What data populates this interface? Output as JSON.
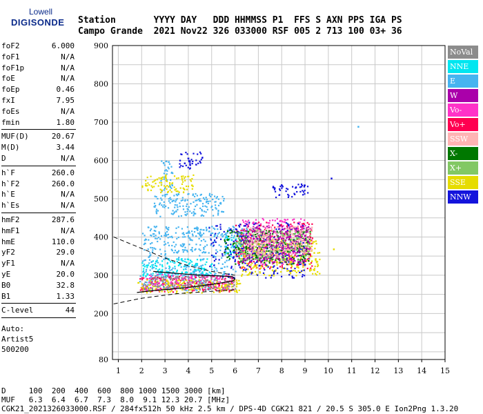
{
  "logo": {
    "line1": "Lowell",
    "line2": "DIGISONDE"
  },
  "header": {
    "line1": "Station       YYYY DAY   DDD HHMMSS P1  FFS S AXN PPS IGA PS",
    "line2": "Campo Grande  2021 Nov22 326 033000 RSF 005 2 713 100 03+ 36"
  },
  "params": [
    {
      "name": "foF2",
      "value": "6.000"
    },
    {
      "name": "foF1",
      "value": "N/A"
    },
    {
      "name": "foF1p",
      "value": "N/A"
    },
    {
      "name": "foE",
      "value": "N/A"
    },
    {
      "name": "foEp",
      "value": "0.46"
    },
    {
      "name": "fxI",
      "value": "7.95"
    },
    {
      "name": "foEs",
      "value": "N/A"
    },
    {
      "name": "fmin",
      "value": "1.80"
    },
    {
      "name": "MUF(D)",
      "value": "20.67"
    },
    {
      "name": "M(D)",
      "value": "3.44"
    },
    {
      "name": "D",
      "value": "N/A"
    },
    {
      "name": "h`F",
      "value": "260.0"
    },
    {
      "name": "h`F2",
      "value": "260.0"
    },
    {
      "name": "h`E",
      "value": "N/A"
    },
    {
      "name": "h`Es",
      "value": "N/A"
    },
    {
      "name": "hmF2",
      "value": "287.6"
    },
    {
      "name": "hmF1",
      "value": "N/A"
    },
    {
      "name": "hmE",
      "value": "110.0"
    },
    {
      "name": "yF2",
      "value": "29.0"
    },
    {
      "name": "yF1",
      "value": "N/A"
    },
    {
      "name": "yE",
      "value": "20.0"
    },
    {
      "name": "B0",
      "value": "32.8"
    },
    {
      "name": "B1",
      "value": "1.33"
    },
    {
      "name": "C-level",
      "value": "44"
    }
  ],
  "auto": {
    "line1": "Auto:",
    "line2": "Artist5",
    "line3": "500200"
  },
  "legend": [
    {
      "label": "NoVal",
      "color": "#8c8c8c"
    },
    {
      "label": "NNE",
      "color": "#00e6f0"
    },
    {
      "label": "E",
      "color": "#46b4f0"
    },
    {
      "label": "W",
      "color": "#aa00aa"
    },
    {
      "label": "Vo-",
      "color": "#ff32c8"
    },
    {
      "label": "Vo+",
      "color": "#ff0050"
    },
    {
      "label": "SSW",
      "color": "#ffb4b4"
    },
    {
      "label": "X-",
      "color": "#007800"
    },
    {
      "label": "X+",
      "color": "#82c864"
    },
    {
      "label": "SSE",
      "color": "#e6dc00"
    },
    {
      "label": "NNW",
      "color": "#1414dc"
    }
  ],
  "footer": {
    "line1": "D     100  200  400  600  800 1000 1500 3000 [km]",
    "line2": "MUF   6.3  6.4  6.7  7.3  8.0  9.1 12.3 20.7 [MHz]",
    "line3": "CGK21_2021326033000.RSF / 284fx512h 50 kHz 2.5 km / DPS-4D CGK21 821 / 20.5 S 305.0 E Ion2Png 1.3.20"
  },
  "chart_data": {
    "type": "scatter",
    "title": "",
    "xlabel": "",
    "ylabel": "",
    "xlim": [
      0.75,
      15
    ],
    "ylim": [
      80,
      900
    ],
    "x_ticks": [
      1,
      2,
      3,
      4,
      5,
      6,
      7,
      8,
      9,
      10,
      11,
      12,
      13,
      14,
      15
    ],
    "y_ticks": [
      80,
      200,
      300,
      400,
      500,
      600,
      700,
      800,
      900
    ],
    "grid": true,
    "legend_position": "right",
    "series": [
      {
        "name": "E",
        "color": "#46b4f0",
        "regions": [
          {
            "x": [
              1.9,
              5.2
            ],
            "y": [
              262,
              312
            ]
          },
          {
            "x": [
              2.0,
              6.0
            ],
            "y": [
              300,
              412
            ]
          },
          {
            "x": [
              2.2,
              6.5
            ],
            "y": [
              400,
              430
            ]
          },
          {
            "x": [
              2.5,
              5.5
            ],
            "y": [
              455,
              515
            ]
          },
          {
            "x": [
              2.8,
              3.3
            ],
            "y": [
              520,
              600
            ]
          }
        ]
      },
      {
        "name": "NNE",
        "color": "#00e6f0",
        "regions": [
          {
            "x": [
              2.0,
              5.0
            ],
            "y": [
              300,
              345
            ]
          },
          {
            "x": [
              5.5,
              6.3
            ],
            "y": [
              350,
              405
            ]
          }
        ]
      },
      {
        "name": "Vo+",
        "color": "#ff0050",
        "regions": [
          {
            "x": [
              1.9,
              6.0
            ],
            "y": [
              258,
              300
            ]
          },
          {
            "x": [
              6.0,
              9.3
            ],
            "y": [
              318,
              440
            ]
          }
        ]
      },
      {
        "name": "Vo-",
        "color": "#ff32c8",
        "regions": [
          {
            "x": [
              2.0,
              6.0
            ],
            "y": [
              262,
              305
            ]
          },
          {
            "x": [
              6.3,
              9.0
            ],
            "y": [
              330,
              450
            ]
          }
        ]
      },
      {
        "name": "SSE",
        "color": "#e6dc00",
        "regions": [
          {
            "x": [
              1.8,
              6.2
            ],
            "y": [
              255,
              290
            ]
          },
          {
            "x": [
              6.2,
              9.6
            ],
            "y": [
              300,
              395
            ]
          },
          {
            "x": [
              2.0,
              4.2
            ],
            "y": [
              518,
              565
            ]
          }
        ]
      },
      {
        "name": "NNW",
        "color": "#1414dc",
        "regions": [
          {
            "x": [
              4.8,
              9.0
            ],
            "y": [
              295,
              440
            ]
          },
          {
            "x": [
              3.6,
              4.6
            ],
            "y": [
              580,
              625
            ]
          },
          {
            "x": [
              7.6,
              9.1
            ],
            "y": [
              505,
              540
            ]
          }
        ]
      },
      {
        "name": "X-",
        "color": "#007800",
        "regions": [
          {
            "x": [
              5.5,
              9.2
            ],
            "y": [
              330,
              420
            ]
          }
        ]
      },
      {
        "name": "X+",
        "color": "#82c864",
        "regions": [
          {
            "x": [
              6.0,
              9.2
            ],
            "y": [
              340,
              420
            ]
          }
        ]
      },
      {
        "name": "W",
        "color": "#aa00aa",
        "regions": [
          {
            "x": [
              6.3,
              9.2
            ],
            "y": [
              335,
              430
            ]
          }
        ]
      },
      {
        "name": "SSW",
        "color": "#ffb4b4",
        "regions": [
          {
            "x": [
              6.5,
              9.3
            ],
            "y": [
              350,
              430
            ]
          }
        ]
      },
      {
        "name": "NoVal",
        "color": "#8c8c8c",
        "regions": [
          {
            "x": [
              2.0,
              6.0
            ],
            "y": [
              262,
              300
            ]
          }
        ]
      }
    ],
    "isolated_points": [
      {
        "x": 11.25,
        "y": 690,
        "series": "E"
      },
      {
        "x": 10.1,
        "y": 555,
        "series": "NNW"
      },
      {
        "x": 10.2,
        "y": 370,
        "series": "SSE"
      }
    ],
    "profile_curve": [
      [
        1.8,
        255
      ],
      [
        2.5,
        260
      ],
      [
        3.5,
        265
      ],
      [
        4.5,
        272
      ],
      [
        5.4,
        280
      ],
      [
        5.9,
        285
      ],
      [
        6.0,
        290
      ],
      [
        5.9,
        296
      ],
      [
        5.4,
        298
      ],
      [
        4.5,
        300
      ],
      [
        3.5,
        305
      ],
      [
        2.5,
        310
      ]
    ],
    "profile_dashed_lower": [
      [
        0.8,
        225
      ],
      [
        2.0,
        240
      ],
      [
        3.5,
        252
      ],
      [
        5.0,
        258
      ],
      [
        6.0,
        262
      ]
    ],
    "profile_dashed_upper": [
      [
        0.8,
        400
      ],
      [
        2.0,
        370
      ],
      [
        3.0,
        345
      ],
      [
        4.0,
        325
      ],
      [
        5.0,
        310
      ],
      [
        6.0,
        300
      ]
    ]
  }
}
